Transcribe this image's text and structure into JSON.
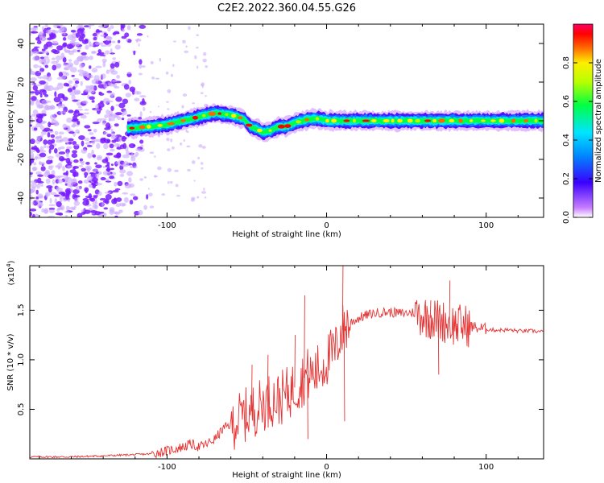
{
  "title": "C2E2.2022.360.04.55.G26",
  "colors": {
    "snr_line": "#e53333",
    "scatter": "#7a1cff",
    "scatter_light": "#c9a6ff",
    "frame": "#000000"
  },
  "colormap": [
    "#c77dff",
    "#3a00ff",
    "#0088ff",
    "#00e5ff",
    "#00ff44",
    "#b6ff00",
    "#ffee00",
    "#ff6600",
    "#ff0000",
    "#ff0066"
  ],
  "chart_data": [
    {
      "id": "spectrogram",
      "type": "heatmap",
      "xlabel": "Height of straight line (km)",
      "ylabel": "Frequency (Hz)",
      "xlim": [
        -186,
        136
      ],
      "ylim": [
        -50,
        50
      ],
      "xticks": [
        "-100",
        "0",
        "100"
      ],
      "xtick_values": [
        -100,
        0,
        100
      ],
      "yticks": [
        "-40",
        "-20",
        "0",
        "20",
        "40"
      ],
      "ytick_values": [
        -40,
        -20,
        0,
        20,
        40
      ],
      "colorbar": {
        "label": "Normalized spectral amplitude",
        "range": [
          0,
          1
        ],
        "ticks": [
          "0.0",
          "0.2",
          "0.4",
          "0.6",
          "0.8"
        ],
        "tick_values": [
          0.0,
          0.2,
          0.4,
          0.6,
          0.8
        ]
      },
      "signal_band": {
        "x": [
          -125,
          -110,
          -100,
          -90,
          -80,
          -70,
          -60,
          -52,
          -48,
          -44,
          -40,
          -35,
          -30,
          -25,
          -20,
          -15,
          -10,
          -5,
          0,
          10,
          20,
          40,
          60,
          80,
          100,
          120,
          136
        ],
        "freq": [
          -4,
          -3,
          -2,
          0,
          2,
          4,
          3,
          1,
          -3,
          -4,
          -6,
          -5,
          -3,
          -3,
          -1,
          0,
          1,
          1,
          0,
          0,
          0,
          0,
          0,
          0,
          0,
          0,
          0
        ]
      },
      "noise_region": [
        -186,
        -120
      ]
    },
    {
      "id": "snr",
      "type": "line",
      "xlabel": "Height of straight line (km)",
      "ylabel": "SNR (10 * v/v)",
      "yscale_label": "(x10",
      "yscale_exp": "4",
      "yscale_close": ")",
      "xlim": [
        -186,
        136
      ],
      "ylim": [
        0,
        1.95
      ],
      "xticks": [
        "-100",
        "0",
        "100"
      ],
      "xtick_values": [
        -100,
        0,
        100
      ],
      "yticks": [
        "0.5",
        "1.0",
        "1.5"
      ],
      "ytick_values": [
        0.5,
        1.0,
        1.5
      ],
      "series": [
        {
          "name": "SNR",
          "x": [
            -186,
            -160,
            -140,
            -125,
            -110,
            -100,
            -95,
            -90,
            -85,
            -80,
            -75,
            -70,
            -65,
            -60,
            -55,
            -50,
            -45,
            -40,
            -35,
            -30,
            -25,
            -20,
            -15,
            -12,
            -8,
            -5,
            -2,
            0,
            3,
            6,
            8,
            10,
            12,
            15,
            18,
            20,
            25,
            30,
            35,
            40,
            45,
            50,
            55,
            60,
            65,
            70,
            75,
            80,
            85,
            90,
            95,
            100,
            105,
            110,
            115,
            120,
            125,
            130,
            136
          ],
          "y": [
            0.02,
            0.02,
            0.03,
            0.04,
            0.05,
            0.08,
            0.1,
            0.12,
            0.15,
            0.12,
            0.15,
            0.2,
            0.3,
            0.35,
            0.4,
            0.45,
            0.5,
            0.55,
            0.6,
            0.6,
            0.65,
            0.72,
            0.8,
            0.85,
            0.85,
            0.9,
            0.95,
            1.0,
            1.05,
            1.1,
            1.25,
            1.3,
            1.35,
            1.38,
            1.4,
            1.42,
            1.45,
            1.47,
            1.48,
            1.48,
            1.47,
            1.47,
            1.48,
            1.45,
            1.42,
            1.4,
            1.38,
            1.35,
            1.35,
            1.34,
            1.32,
            1.31,
            1.3,
            1.3,
            1.3,
            1.29,
            1.29,
            1.29,
            1.28
          ]
        }
      ]
    }
  ]
}
